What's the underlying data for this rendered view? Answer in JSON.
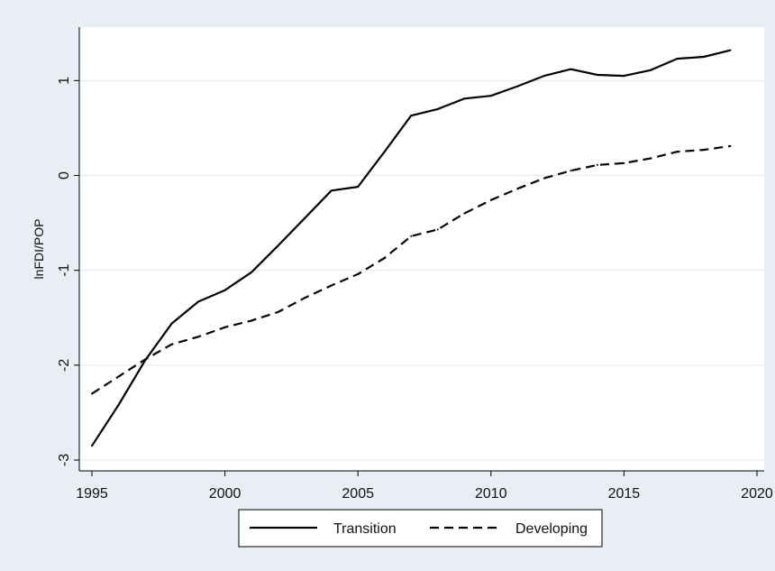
{
  "chart_data": {
    "type": "line",
    "title": "",
    "xlabel": "",
    "ylabel": "lnFDI/POP",
    "xlim": [
      1995,
      2020
    ],
    "ylim": [
      -3,
      1.45
    ],
    "x_ticks": [
      1995,
      2000,
      2005,
      2010,
      2015,
      2020
    ],
    "y_ticks": [
      -3,
      -2,
      -1,
      0,
      1
    ],
    "grid": "horizontal",
    "legend_position": "bottom",
    "x": [
      1995,
      1996,
      1997,
      1998,
      1999,
      2000,
      2001,
      2002,
      2003,
      2004,
      2005,
      2006,
      2007,
      2008,
      2009,
      2010,
      2011,
      2012,
      2013,
      2014,
      2015,
      2016,
      2017,
      2018,
      2019
    ],
    "series": [
      {
        "name": "Transition",
        "style": "solid",
        "values": [
          -2.85,
          -2.42,
          -1.95,
          -1.56,
          -1.33,
          -1.21,
          -1.02,
          -0.74,
          -0.45,
          -0.16,
          -0.12,
          0.25,
          0.63,
          0.7,
          0.81,
          0.84,
          0.94,
          1.05,
          1.12,
          1.06,
          1.05,
          1.11,
          1.23,
          1.25,
          1.32
        ]
      },
      {
        "name": "Developing",
        "style": "dashed",
        "values": [
          -2.3,
          -2.12,
          -1.94,
          -1.78,
          -1.7,
          -1.6,
          -1.53,
          -1.44,
          -1.29,
          -1.16,
          -1.04,
          -0.87,
          -0.64,
          -0.57,
          -0.4,
          -0.26,
          -0.14,
          -0.03,
          0.05,
          0.11,
          0.13,
          0.18,
          0.25,
          0.27,
          0.31
        ]
      }
    ],
    "colors": {
      "line": "#000000",
      "plot_bg": "#ffffff",
      "outer_bg": "#e8eef3",
      "grid": "#e5edf2"
    }
  }
}
